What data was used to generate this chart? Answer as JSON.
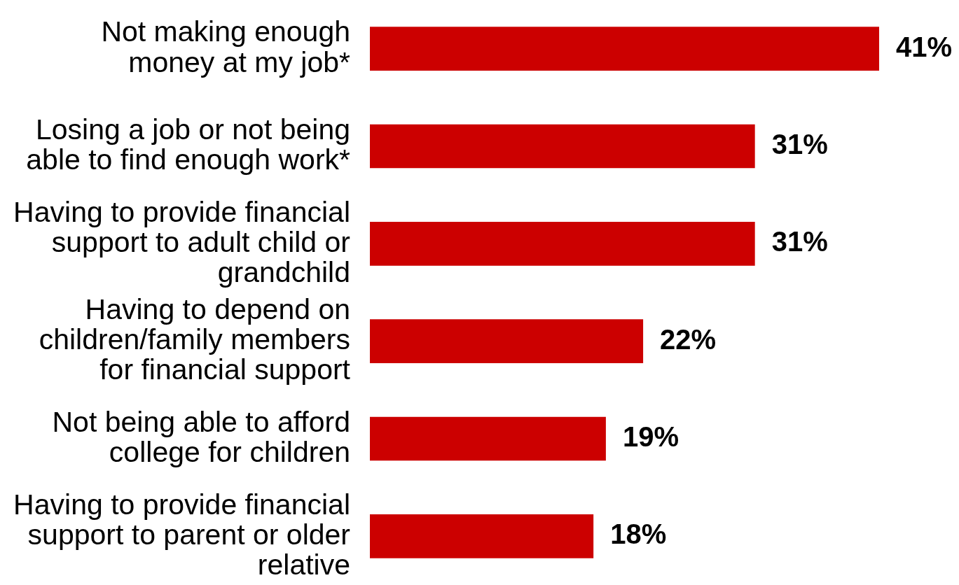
{
  "chart_data": {
    "type": "bar",
    "orientation": "horizontal",
    "categories": [
      "Not making enough money at my job*",
      "Losing a job or not being able to find enough work*",
      "Having to provide financial support to adult child or grandchild",
      "Having to depend on children/family members for financial support",
      "Not being able to afford college for children",
      "Having to provide financial support to parent or older relative"
    ],
    "values": [
      41,
      31,
      31,
      22,
      19,
      18
    ],
    "value_labels": [
      "41%",
      "31%",
      "31%",
      "22%",
      "19%",
      "18%"
    ],
    "color": "#cc0000",
    "legend": false
  }
}
